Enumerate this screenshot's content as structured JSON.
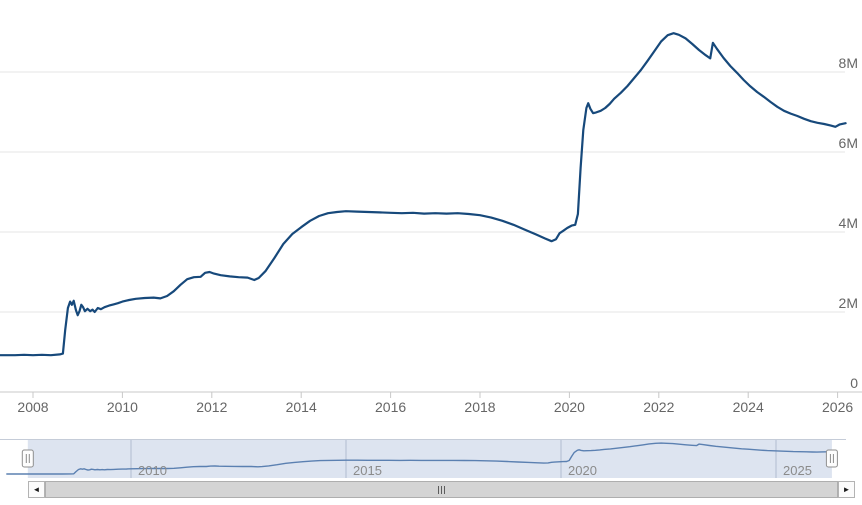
{
  "chart_data": {
    "type": "line",
    "title": "",
    "xlabel": "",
    "ylabel": "",
    "legend": "none",
    "grid": true,
    "x_axis": {
      "ticks": [
        2008,
        2010,
        2012,
        2014,
        2016,
        2018,
        2020,
        2022,
        2024,
        2026
      ],
      "range": [
        2007.25,
        2026.6
      ]
    },
    "y_axis": {
      "ticks": [
        {
          "value": 8,
          "label": "8M"
        },
        {
          "value": 6,
          "label": "6M"
        },
        {
          "value": 4,
          "label": "4M"
        },
        {
          "value": 2,
          "label": "2M"
        },
        {
          "value": 0,
          "label": "0"
        }
      ],
      "range": [
        0,
        9.4
      ]
    },
    "series": [
      {
        "name": "main-series",
        "color": "#17497b",
        "points": [
          [
            2007.1,
            0.92
          ],
          [
            2007.4,
            0.92
          ],
          [
            2007.6,
            0.92
          ],
          [
            2007.8,
            0.93
          ],
          [
            2008.0,
            0.92
          ],
          [
            2008.2,
            0.93
          ],
          [
            2008.4,
            0.92
          ],
          [
            2008.6,
            0.94
          ],
          [
            2008.67,
            0.96
          ],
          [
            2008.72,
            1.55
          ],
          [
            2008.78,
            2.1
          ],
          [
            2008.83,
            2.26
          ],
          [
            2008.87,
            2.18
          ],
          [
            2008.91,
            2.28
          ],
          [
            2008.96,
            2.05
          ],
          [
            2009.0,
            1.92
          ],
          [
            2009.04,
            2.02
          ],
          [
            2009.08,
            2.18
          ],
          [
            2009.12,
            2.12
          ],
          [
            2009.16,
            2.02
          ],
          [
            2009.22,
            2.08
          ],
          [
            2009.28,
            2.02
          ],
          [
            2009.33,
            2.06
          ],
          [
            2009.38,
            2.0
          ],
          [
            2009.45,
            2.1
          ],
          [
            2009.52,
            2.07
          ],
          [
            2009.6,
            2.12
          ],
          [
            2009.7,
            2.16
          ],
          [
            2009.8,
            2.19
          ],
          [
            2009.9,
            2.22
          ],
          [
            2010.0,
            2.26
          ],
          [
            2010.15,
            2.3
          ],
          [
            2010.3,
            2.33
          ],
          [
            2010.5,
            2.35
          ],
          [
            2010.7,
            2.36
          ],
          [
            2010.85,
            2.34
          ],
          [
            2011.0,
            2.4
          ],
          [
            2011.15,
            2.52
          ],
          [
            2011.3,
            2.68
          ],
          [
            2011.45,
            2.82
          ],
          [
            2011.6,
            2.87
          ],
          [
            2011.75,
            2.88
          ],
          [
            2011.85,
            2.98
          ],
          [
            2011.95,
            3.0
          ],
          [
            2012.05,
            2.96
          ],
          [
            2012.2,
            2.92
          ],
          [
            2012.4,
            2.89
          ],
          [
            2012.6,
            2.87
          ],
          [
            2012.8,
            2.86
          ],
          [
            2012.95,
            2.8
          ],
          [
            2013.05,
            2.85
          ],
          [
            2013.2,
            3.02
          ],
          [
            2013.4,
            3.35
          ],
          [
            2013.6,
            3.7
          ],
          [
            2013.8,
            3.95
          ],
          [
            2014.0,
            4.12
          ],
          [
            2014.2,
            4.28
          ],
          [
            2014.4,
            4.4
          ],
          [
            2014.6,
            4.47
          ],
          [
            2014.8,
            4.5
          ],
          [
            2015.0,
            4.52
          ],
          [
            2015.25,
            4.51
          ],
          [
            2015.5,
            4.5
          ],
          [
            2015.75,
            4.49
          ],
          [
            2016.0,
            4.48
          ],
          [
            2016.25,
            4.47
          ],
          [
            2016.5,
            4.48
          ],
          [
            2016.75,
            4.46
          ],
          [
            2017.0,
            4.47
          ],
          [
            2017.25,
            4.46
          ],
          [
            2017.5,
            4.47
          ],
          [
            2017.75,
            4.45
          ],
          [
            2018.0,
            4.42
          ],
          [
            2018.25,
            4.36
          ],
          [
            2018.5,
            4.28
          ],
          [
            2018.75,
            4.18
          ],
          [
            2019.0,
            4.06
          ],
          [
            2019.25,
            3.94
          ],
          [
            2019.45,
            3.84
          ],
          [
            2019.6,
            3.77
          ],
          [
            2019.7,
            3.82
          ],
          [
            2019.78,
            3.97
          ],
          [
            2019.85,
            4.02
          ],
          [
            2019.95,
            4.1
          ],
          [
            2020.05,
            4.16
          ],
          [
            2020.13,
            4.18
          ],
          [
            2020.19,
            4.45
          ],
          [
            2020.25,
            5.6
          ],
          [
            2020.31,
            6.55
          ],
          [
            2020.38,
            7.1
          ],
          [
            2020.42,
            7.22
          ],
          [
            2020.47,
            7.08
          ],
          [
            2020.53,
            6.97
          ],
          [
            2020.6,
            6.99
          ],
          [
            2020.7,
            7.03
          ],
          [
            2020.8,
            7.1
          ],
          [
            2020.9,
            7.2
          ],
          [
            2021.0,
            7.33
          ],
          [
            2021.15,
            7.48
          ],
          [
            2021.3,
            7.65
          ],
          [
            2021.45,
            7.85
          ],
          [
            2021.6,
            8.05
          ],
          [
            2021.75,
            8.28
          ],
          [
            2021.9,
            8.52
          ],
          [
            2022.05,
            8.76
          ],
          [
            2022.2,
            8.92
          ],
          [
            2022.33,
            8.97
          ],
          [
            2022.45,
            8.93
          ],
          [
            2022.6,
            8.84
          ],
          [
            2022.75,
            8.7
          ],
          [
            2022.9,
            8.55
          ],
          [
            2023.05,
            8.42
          ],
          [
            2023.15,
            8.34
          ],
          [
            2023.21,
            8.73
          ],
          [
            2023.3,
            8.58
          ],
          [
            2023.45,
            8.35
          ],
          [
            2023.6,
            8.15
          ],
          [
            2023.75,
            7.98
          ],
          [
            2023.9,
            7.8
          ],
          [
            2024.05,
            7.64
          ],
          [
            2024.2,
            7.5
          ],
          [
            2024.35,
            7.38
          ],
          [
            2024.5,
            7.25
          ],
          [
            2024.65,
            7.13
          ],
          [
            2024.8,
            7.03
          ],
          [
            2024.95,
            6.96
          ],
          [
            2025.1,
            6.9
          ],
          [
            2025.25,
            6.83
          ],
          [
            2025.4,
            6.77
          ],
          [
            2025.55,
            6.73
          ],
          [
            2025.7,
            6.7
          ],
          [
            2025.85,
            6.66
          ],
          [
            2025.95,
            6.63
          ],
          [
            2026.05,
            6.69
          ],
          [
            2026.18,
            6.72
          ]
        ]
      }
    ],
    "navigator": {
      "ticks": [
        2010,
        2015,
        2020,
        2025
      ],
      "selected_range_years": [
        2007.6,
        2026.3
      ],
      "line_color": "#5b80b1",
      "mask_color": "rgba(99,132,187,0.22)"
    }
  },
  "colors": {
    "series": "#17497b",
    "grid": "#e6e6e6",
    "axis_line": "#c8c8c8",
    "tick": "#c8c8c8",
    "axis_label": "#666666",
    "nav_label": "#8b8b8b",
    "nav_grid": "#9aa4b8",
    "nav_outline": "#c5ccd8",
    "handle_fill": "#fdfdfd",
    "handle_stroke": "#8f8f8f"
  },
  "scrollbar": {
    "left_arrow": "◄",
    "right_arrow": "►"
  }
}
